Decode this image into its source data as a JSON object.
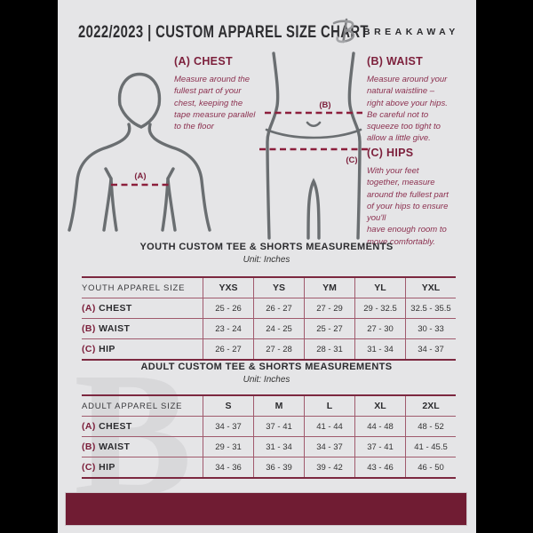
{
  "header": {
    "title": "2022/2023  |  CUSTOM APPAREL SIZE CHART",
    "brand": "BREAKAWAY"
  },
  "measure_guide": {
    "chest": {
      "heading": "(A) CHEST",
      "marker": "(A)",
      "body": "Measure around the\nfullest part of your\nchest, keeping the\ntape measure parallel\nto the floor"
    },
    "waist": {
      "heading": "(B) WAIST",
      "marker": "(B)",
      "body": "Measure around your\nnatural waistline –\nright above your hips.\nBe careful not to\nsqueeze too tight to\nallow a little give."
    },
    "hips": {
      "heading": "(C) HIPS",
      "marker": "(C)",
      "body": "With your feet\ntogether, measure\naround the fullest part\nof your hips to ensure\nyou'll\nhave enough room to\nmove comfortably."
    }
  },
  "youth_table": {
    "title": "YOUTH CUSTOM TEE & SHORTS MEASUREMENTS",
    "unit": "Unit: Inches",
    "columns": [
      "YOUTH APPAREL SIZE",
      "YXS",
      "YS",
      "YM",
      "YL",
      "YXL"
    ],
    "rows": [
      {
        "prefix": "(A)",
        "label": "CHEST",
        "values": [
          "25 - 26",
          "26 - 27",
          "27 - 29",
          "29 - 32.5",
          "32.5 - 35.5"
        ]
      },
      {
        "prefix": "(B)",
        "label": "WAIST",
        "values": [
          "23 - 24",
          "24 - 25",
          "25 - 27",
          "27 - 30",
          "30 - 33"
        ]
      },
      {
        "prefix": "(C)",
        "label": "HIP",
        "values": [
          "26 - 27",
          "27 - 28",
          "28 - 31",
          "31 - 34",
          "34 - 37"
        ]
      }
    ]
  },
  "adult_table": {
    "title": "ADULT CUSTOM TEE & SHORTS MEASUREMENTS",
    "unit": "Unit: Inches",
    "columns": [
      "ADULT APPAREL SIZE",
      "S",
      "M",
      "L",
      "XL",
      "2XL"
    ],
    "rows": [
      {
        "prefix": "(A)",
        "label": "CHEST",
        "values": [
          "34 - 37",
          "37 - 41",
          "41 - 44",
          "44 - 48",
          "48 - 52"
        ]
      },
      {
        "prefix": "(B)",
        "label": "WAIST",
        "values": [
          "29 - 31",
          "31 - 34",
          "34 - 37",
          "37 - 41",
          "41 - 45.5"
        ]
      },
      {
        "prefix": "(C)",
        "label": "HIP",
        "values": [
          "34 - 36",
          "36 - 39",
          "39 - 42",
          "43 - 46",
          "46 - 50"
        ]
      }
    ]
  },
  "watermark": "B",
  "colors": {
    "page_bg": "#e5e5e7",
    "outer_bg": "#000000",
    "maroon": "#701c33",
    "maroon_heading": "#7c1f3b",
    "maroon_italic_text": "#8c3150",
    "table_border_heavy": "#7c2840",
    "table_border_light": "#a05a6d",
    "ink": "#2e2e31",
    "body_outline_gray": "#6a6e71"
  }
}
